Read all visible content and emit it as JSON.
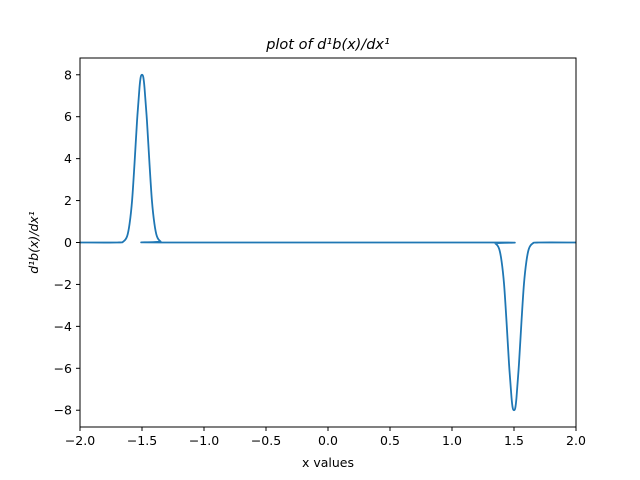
{
  "chart_data": {
    "type": "line",
    "title": "plot of d¹b(x)/dx¹",
    "xlabel": "x values",
    "ylabel": "d¹b(x)/dx¹",
    "xlim": [
      -2.0,
      2.0
    ],
    "ylim": [
      -8.8,
      8.8
    ],
    "xticks": [
      -2.0,
      -1.5,
      -1.0,
      -0.5,
      0.0,
      0.5,
      1.0,
      1.5,
      2.0
    ],
    "xtick_labels": [
      "−2.0",
      "−1.5",
      "−1.0",
      "−0.5",
      "0.0",
      "0.5",
      "1.0",
      "1.5",
      "2.0"
    ],
    "yticks": [
      -8,
      -6,
      -4,
      -2,
      0,
      2,
      4,
      6,
      8
    ],
    "ytick_labels": [
      "−8",
      "−6",
      "−4",
      "−2",
      "0",
      "2",
      "4",
      "6",
      "8"
    ],
    "grid": false,
    "series": [
      {
        "color": "#1f77b4",
        "x": [
          -2.0,
          -1.7,
          -1.65,
          -1.62,
          -1.6,
          -1.58,
          -1.56,
          -1.54,
          -1.52,
          -1.51,
          -1.5,
          -1.49,
          -1.48,
          -1.46,
          -1.44,
          -1.42,
          -1.4,
          -1.38,
          -1.35,
          -1.3,
          1.3,
          1.35,
          1.38,
          1.4,
          1.42,
          1.44,
          1.46,
          1.48,
          1.49,
          1.5,
          1.51,
          1.52,
          1.54,
          1.56,
          1.58,
          1.6,
          1.62,
          1.65,
          1.7,
          2.0
        ],
        "y": [
          0.0,
          0.0,
          0.05,
          0.3,
          0.9,
          2.0,
          3.8,
          5.8,
          7.4,
          7.9,
          8.0,
          7.9,
          7.4,
          5.8,
          3.8,
          2.0,
          0.9,
          0.3,
          0.05,
          0.0,
          0.0,
          -0.05,
          -0.3,
          -0.9,
          -2.0,
          -3.8,
          -5.8,
          -7.4,
          -7.9,
          -8.0,
          -7.9,
          -7.4,
          -5.8,
          -3.8,
          -2.0,
          -0.9,
          -0.3,
          -0.05,
          0.0,
          0.0
        ]
      }
    ]
  }
}
